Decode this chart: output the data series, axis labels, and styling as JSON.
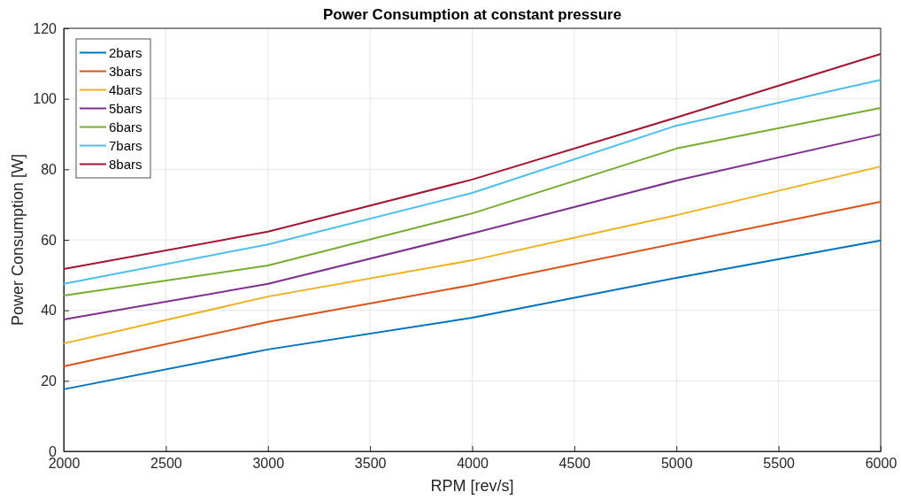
{
  "chart_data": {
    "type": "line",
    "title": "Power Consumption at constant pressure",
    "xlabel": "RPM [rev/s]",
    "ylabel": "Power Consumption [W]",
    "x": [
      2000,
      3000,
      4000,
      5000,
      6000
    ],
    "xlim": [
      2000,
      6000
    ],
    "xticks": [
      2000,
      2500,
      3000,
      3500,
      4000,
      4500,
      5000,
      5500,
      6000
    ],
    "ylim": [
      0,
      120
    ],
    "yticks": [
      0,
      20,
      40,
      60,
      80,
      100,
      120
    ],
    "grid": true,
    "legend": "top left",
    "marker": "none",
    "line_style": "solid",
    "series": [
      {
        "name": "2bars",
        "color": "#0072bd",
        "values": [
          17.6,
          28.9,
          37.9,
          49.2,
          59.8
        ]
      },
      {
        "name": "3bars",
        "color": "#d95319",
        "values": [
          24.1,
          36.7,
          47.2,
          59,
          70.8
        ]
      },
      {
        "name": "4bars",
        "color": "#edb120",
        "values": [
          30.6,
          43.9,
          54.2,
          67,
          80.8
        ]
      },
      {
        "name": "5bars",
        "color": "#7e2f8e",
        "values": [
          37.4,
          47.5,
          61.8,
          76.8,
          89.9
        ]
      },
      {
        "name": "6bars",
        "color": "#77ac30",
        "values": [
          44.2,
          52.7,
          67.5,
          85.9,
          97.4
        ]
      },
      {
        "name": "7bars",
        "color": "#4dbeee",
        "values": [
          47.5,
          58.7,
          73.3,
          92.4,
          105.4
        ]
      },
      {
        "name": "8bars",
        "color": "#a2142f",
        "values": [
          51.7,
          62.3,
          77.1,
          94.7,
          112.7
        ]
      }
    ]
  }
}
